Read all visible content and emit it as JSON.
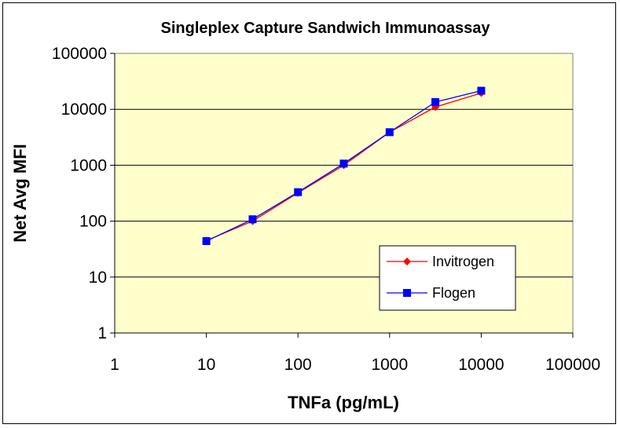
{
  "chart_data": {
    "type": "line",
    "title": "Singleplex Capture Sandwich Immunoassay",
    "xlabel": "TNFa (pg/mL)",
    "ylabel": "Net Avg MFI",
    "x_scale": "log",
    "y_scale": "log",
    "xlim": [
      1,
      100000
    ],
    "ylim": [
      1,
      100000
    ],
    "x_ticks": [
      "1",
      "10",
      "100",
      "1000",
      "10000",
      "100000"
    ],
    "y_ticks": [
      "1",
      "10",
      "100",
      "1000",
      "10000",
      "100000"
    ],
    "grid": "horizontal major lines",
    "legend_position": "lower-right",
    "x": [
      10,
      32,
      100,
      316,
      1000,
      3160,
      10000
    ],
    "series": [
      {
        "name": "Invitrogen",
        "color": "#ff0000",
        "marker": "diamond",
        "values": [
          45,
          100,
          320,
          1000,
          3900,
          11000,
          19500
        ]
      },
      {
        "name": "Flogen",
        "color": "#0000ff",
        "marker": "square",
        "values": [
          44,
          108,
          330,
          1070,
          3900,
          13500,
          21500
        ]
      }
    ],
    "plot_background": "#ffffcc"
  }
}
